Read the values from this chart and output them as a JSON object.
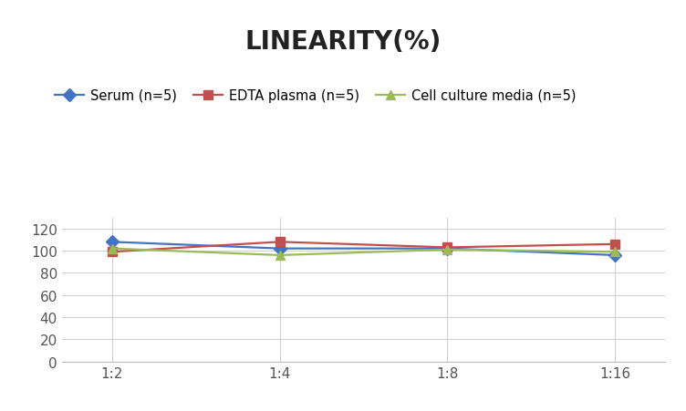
{
  "title": "LINEARITY(%)",
  "x_labels": [
    "1:2",
    "1:4",
    "1:8",
    "1:16"
  ],
  "x_positions": [
    0,
    1,
    2,
    3
  ],
  "series": [
    {
      "label": "Serum (n=5)",
      "values": [
        108,
        102,
        102,
        96
      ],
      "color": "#4472C4",
      "marker": "D",
      "marker_size": 7,
      "linewidth": 1.6
    },
    {
      "label": "EDTA plasma (n=5)",
      "values": [
        99,
        108,
        103,
        106
      ],
      "color": "#C0504D",
      "marker": "s",
      "marker_size": 7,
      "linewidth": 1.6
    },
    {
      "label": "Cell culture media (n=5)",
      "values": [
        102,
        96,
        101,
        99
      ],
      "color": "#9BBB59",
      "marker": "^",
      "marker_size": 7,
      "linewidth": 1.6
    }
  ],
  "ylim": [
    0,
    130
  ],
  "yticks": [
    0,
    20,
    40,
    60,
    80,
    100,
    120
  ],
  "background_color": "#ffffff",
  "grid_color": "#d0d0d0",
  "title_fontsize": 20,
  "tick_fontsize": 11,
  "legend_fontsize": 10.5
}
